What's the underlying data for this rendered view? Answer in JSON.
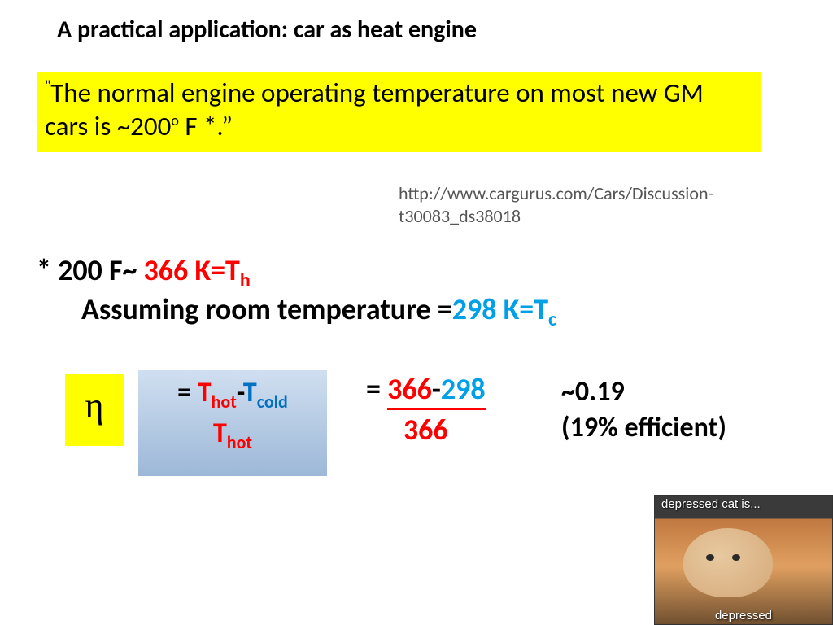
{
  "title": "A practical application: car as heat engine",
  "quote": {
    "open": "\"",
    "text1": "The normal engine operating temperature on most new GM cars is ~200",
    "sup": "o",
    "text2": " F *.”"
  },
  "source": {
    "line1": "http://www.cargurus.com/Cars/Discussion-",
    "line2": "t30083_ds38018"
  },
  "conv": {
    "prefix": "* 200 F~ ",
    "th_val": "366 K=T",
    "th_sub": "h"
  },
  "assume": {
    "text": "Assuming room temperature =",
    "tc_val": "298 K=T",
    "tc_sub": "c"
  },
  "eta_symbol": "η",
  "formula": {
    "eq": "= ",
    "T": "T",
    "hot": "hot",
    "dash": "-",
    "cold": "cold"
  },
  "numeric": {
    "eq": "= ",
    "n1": "366",
    "dash": "-",
    "n2": "298",
    "denom": "366"
  },
  "result": {
    "val": "~0.19",
    "pct": "(19% efficient)"
  },
  "meme": {
    "top": "depressed cat is...",
    "bottom": "depressed"
  }
}
